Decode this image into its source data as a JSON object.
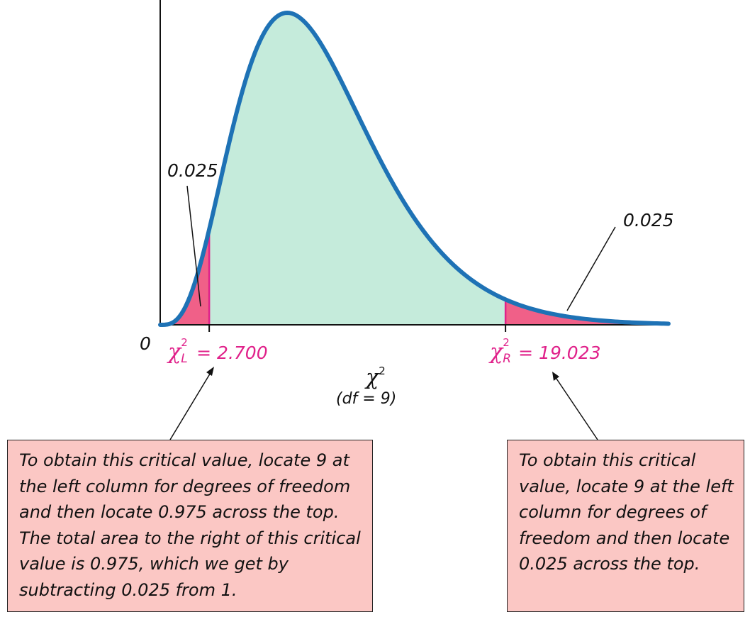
{
  "chart_data": {
    "type": "area",
    "distribution": "chi-square",
    "df": 9,
    "xlim": [
      0,
      28
    ],
    "origin_label": "0",
    "x_axis_symbol": "χ",
    "x_axis_superscript": "2",
    "df_label": "(df = 9)",
    "shaded_regions": [
      {
        "name": "left tail",
        "from": 0,
        "to": 2.7,
        "area_label": "0.025",
        "color": "#f06088"
      },
      {
        "name": "middle",
        "from": 2.7,
        "to": 19.023,
        "color": "#c5ebdb"
      },
      {
        "name": "right tail",
        "from": 19.023,
        "to": 28,
        "area_label": "0.025",
        "color": "#f06088"
      }
    ],
    "critical_values": [
      {
        "symbol": "χ",
        "superscript": "2",
        "subscript": "L",
        "text": "= 2.700",
        "value": 2.7
      },
      {
        "symbol": "χ",
        "superscript": "2",
        "subscript": "R",
        "text": "= 19.023",
        "value": 19.023
      }
    ],
    "curve_color": "#1e72b5"
  },
  "callouts": {
    "left": "To obtain this critical value, locate 9 at the left column for degrees of freedom and then locate 0.975 across the top. The total area to the right of this critical value is 0.975, which we get by subtracting 0.025 from 1.",
    "right": "To obtain this critical value, locate 9 at the left column for degrees of freedom and then locate 0.025 across the top."
  }
}
